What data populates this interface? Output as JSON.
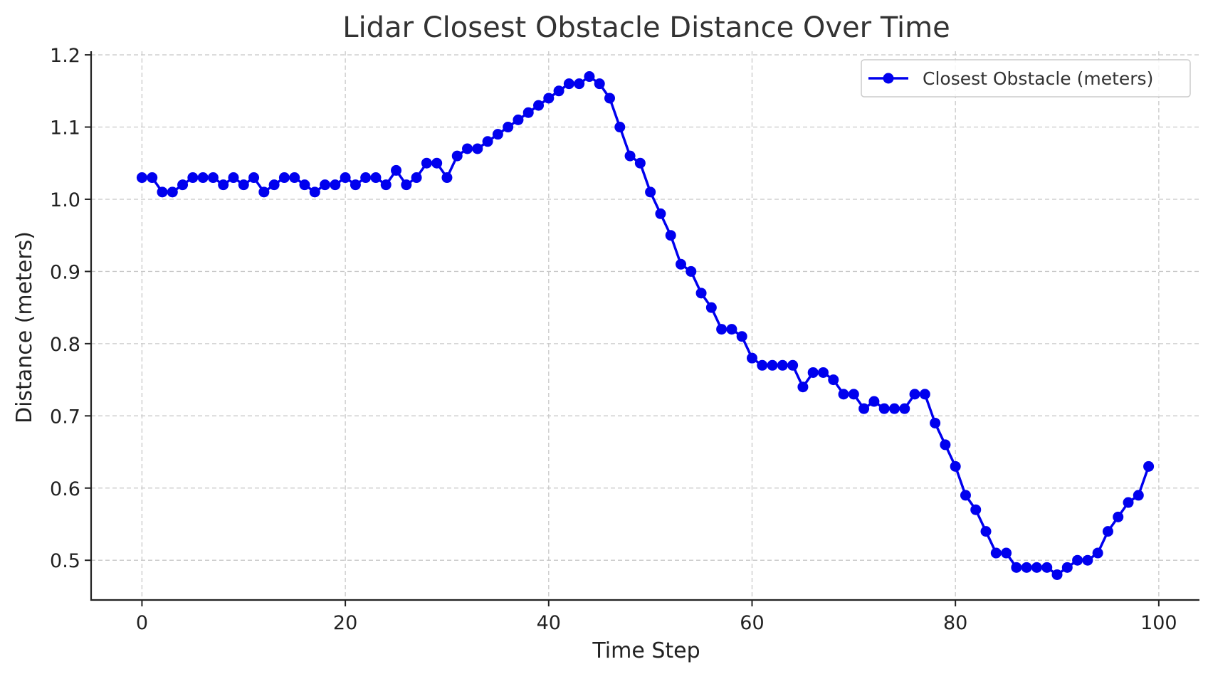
{
  "chart_data": {
    "type": "line",
    "title": "Lidar Closest Obstacle Distance Over Time",
    "xlabel": "Time Step",
    "ylabel": "Distance (meters)",
    "xlim": [
      -5,
      104
    ],
    "ylim": [
      0.445,
      1.205
    ],
    "xticks": [
      0,
      20,
      40,
      60,
      80,
      100
    ],
    "yticks": [
      0.5,
      0.6,
      0.7,
      0.8,
      0.9,
      1.0,
      1.1,
      1.2
    ],
    "xtick_labels": [
      "0",
      "20",
      "40",
      "60",
      "80",
      "100"
    ],
    "ytick_labels": [
      "0.5",
      "0.6",
      "0.7",
      "0.8",
      "0.9",
      "1.0",
      "1.1",
      "1.2"
    ],
    "grid": true,
    "legend_position": "top-right",
    "series": [
      {
        "name": "Closest Obstacle (meters)",
        "color": "#0000ee",
        "marker": "circle",
        "x": [
          0,
          1,
          2,
          3,
          4,
          5,
          6,
          7,
          8,
          9,
          10,
          11,
          12,
          13,
          14,
          15,
          16,
          17,
          18,
          19,
          20,
          21,
          22,
          23,
          24,
          25,
          26,
          27,
          28,
          29,
          30,
          31,
          32,
          33,
          34,
          35,
          36,
          37,
          38,
          39,
          40,
          41,
          42,
          43,
          44,
          45,
          46,
          47,
          48,
          49,
          50,
          51,
          52,
          53,
          54,
          55,
          56,
          57,
          58,
          59,
          60,
          61,
          62,
          63,
          64,
          65,
          66,
          67,
          68,
          69,
          70,
          71,
          72,
          73,
          74,
          75,
          76,
          77,
          78,
          79,
          80,
          81,
          82,
          83,
          84,
          85,
          86,
          87,
          88,
          89,
          90,
          91,
          92,
          93,
          94,
          95,
          96,
          97,
          98,
          99
        ],
        "values": [
          1.03,
          1.03,
          1.01,
          1.01,
          1.02,
          1.03,
          1.03,
          1.03,
          1.02,
          1.03,
          1.02,
          1.03,
          1.01,
          1.02,
          1.03,
          1.03,
          1.02,
          1.01,
          1.02,
          1.02,
          1.03,
          1.02,
          1.03,
          1.03,
          1.02,
          1.04,
          1.02,
          1.03,
          1.05,
          1.05,
          1.03,
          1.06,
          1.07,
          1.07,
          1.08,
          1.09,
          1.1,
          1.11,
          1.12,
          1.13,
          1.14,
          1.15,
          1.16,
          1.16,
          1.17,
          1.16,
          1.14,
          1.1,
          1.06,
          1.05,
          1.01,
          0.98,
          0.95,
          0.91,
          0.9,
          0.87,
          0.85,
          0.82,
          0.82,
          0.81,
          0.78,
          0.77,
          0.77,
          0.77,
          0.77,
          0.74,
          0.76,
          0.76,
          0.75,
          0.73,
          0.73,
          0.71,
          0.72,
          0.71,
          0.71,
          0.71,
          0.73,
          0.73,
          0.69,
          0.66,
          0.63,
          0.59,
          0.57,
          0.54,
          0.51,
          0.51,
          0.49,
          0.49,
          0.49,
          0.49,
          0.48,
          0.49,
          0.5,
          0.5,
          0.51,
          0.54,
          0.56,
          0.58,
          0.59,
          0.63
        ]
      }
    ]
  }
}
